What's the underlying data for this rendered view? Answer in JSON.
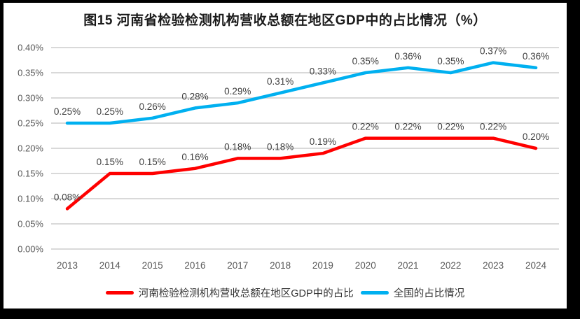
{
  "chart_data": {
    "type": "line",
    "title": "图15  河南省检验检测机构营收总额在地区GDP中的占比情况（%）",
    "categories": [
      "2013",
      "2014",
      "2015",
      "2016",
      "2017",
      "2018",
      "2019",
      "2020",
      "2021",
      "2022",
      "2023",
      "2024"
    ],
    "series": [
      {
        "name": "河南检验检测机构营收总额在地区GDP中的占比",
        "color": "#FF0000",
        "values": [
          0.08,
          0.15,
          0.15,
          0.16,
          0.18,
          0.18,
          0.19,
          0.22,
          0.22,
          0.22,
          0.22,
          0.2
        ],
        "labels": [
          "0.08%",
          "0.15%",
          "0.15%",
          "0.16%",
          "0.18%",
          "0.18%",
          "0.19%",
          "0.22%",
          "0.22%",
          "0.22%",
          "0.22%",
          "0.20%"
        ]
      },
      {
        "name": "全国的占比情况",
        "color": "#00B0F0",
        "values": [
          0.25,
          0.25,
          0.26,
          0.28,
          0.29,
          0.31,
          0.33,
          0.35,
          0.36,
          0.35,
          0.37,
          0.36
        ],
        "labels": [
          "0.25%",
          "0.25%",
          "0.26%",
          "0.28%",
          "0.29%",
          "0.31%",
          "0.33%",
          "0.35%",
          "0.36%",
          "0.35%",
          "0.37%",
          "0.36%"
        ]
      }
    ],
    "y_axis": {
      "min": 0,
      "max": 0.4,
      "step": 0.05,
      "tick_labels": [
        "0.00%",
        "0.05%",
        "0.10%",
        "0.15%",
        "0.20%",
        "0.25%",
        "0.30%",
        "0.35%",
        "0.40%"
      ]
    },
    "xlabel": "",
    "ylabel": "",
    "grid": true,
    "legend_position": "bottom"
  },
  "colors": {
    "frame_border": "#000000",
    "chart_background": "#ffffff",
    "gridline": "#D9D9D9",
    "axis_text": "#595959",
    "data_label_text": "#404040",
    "title_text": "#1a1a1a",
    "legend_text": "#333333"
  }
}
